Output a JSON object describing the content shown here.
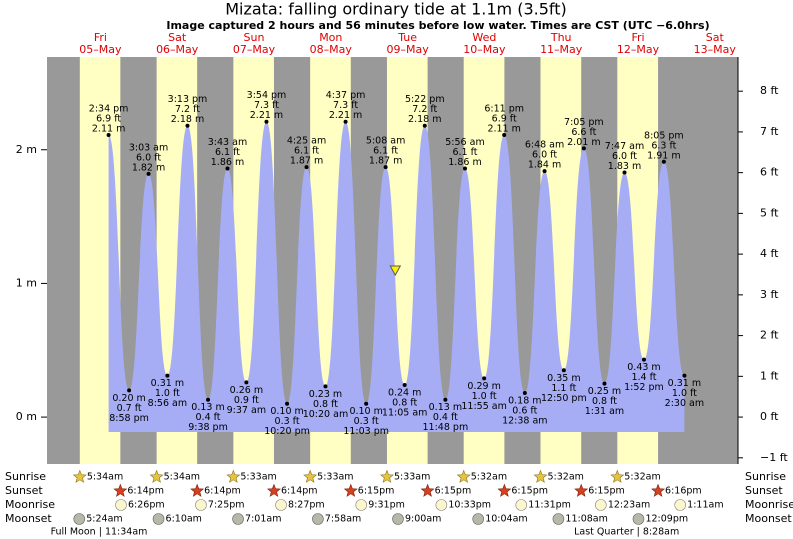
{
  "chart_data": {
    "type": "tide",
    "title": "Mizata: falling  ordinary tide at 1.1m (3.5ft)",
    "subtitle": "Image captured 2 hours and 56 minutes before low water. Times are CST (UTC −6.0hrs)",
    "current_height": 1.1,
    "ylim": [
      -0.351,
      2.694
    ],
    "yticks": [
      {
        "value": 0,
        "label": "0 m"
      },
      {
        "value": 1,
        "label": "1 m"
      },
      {
        "value": 2,
        "label": "2 m"
      }
    ],
    "y2lim": [
      -1.152,
      8.839
    ],
    "y2ticks": [
      {
        "value": -1,
        "label": "−1 ft"
      },
      {
        "value": 0,
        "label": "0 ft"
      },
      {
        "value": 1,
        "label": "1 ft"
      },
      {
        "value": 2,
        "label": "2 ft"
      },
      {
        "value": 3,
        "label": "3 ft"
      },
      {
        "value": 4,
        "label": "4 ft"
      },
      {
        "value": 5,
        "label": "5 ft"
      },
      {
        "value": 6,
        "label": "6 ft"
      },
      {
        "value": 7,
        "label": "7 ft"
      },
      {
        "value": 8,
        "label": "8 ft"
      }
    ],
    "area_color": "#a6adf4",
    "day_color": "#ffffc4",
    "night_color": "#999999",
    "extremes": {
      "times": [
        "2:34 pm",
        "8:58 pm",
        "3:03 am",
        "8:56 am",
        "3:13 pm",
        "9:38 pm",
        "3:43 am",
        "9:37 am",
        "3:54 pm",
        "10:20 pm",
        "4:25 am",
        "10:20 am",
        "4:37 pm",
        "11:03 pm",
        "5:08 am",
        "11:05 am",
        "5:22 pm",
        "11:48 pm",
        "5:56 am",
        "11:55 am",
        "6:11 pm",
        "12:38 am",
        "6:48 am",
        "12:50 pm",
        "7:05 pm",
        "1:31 am",
        "7:47 am",
        "1:52 pm",
        "8:05 pm",
        "2:30 am"
      ],
      "values": [
        2.11,
        0.2,
        1.82,
        0.31,
        2.18,
        0.13,
        1.86,
        0.26,
        2.21,
        0.1,
        1.87,
        0.23,
        2.21,
        0.1,
        1.87,
        0.24,
        2.18,
        0.13,
        1.86,
        0.29,
        2.11,
        0.18,
        1.84,
        0.35,
        2.01,
        0.25,
        1.83,
        0.43,
        1.91,
        0.31
      ],
      "value_labels": [
        "2.11 m",
        "0.20 m",
        "1.82 m",
        "0.31 m",
        "2.18 m",
        "0.13 m",
        "1.86 m",
        "0.26 m",
        "2.21 m",
        "0.10 m",
        "1.87 m",
        "0.23 m",
        "2.21 m",
        "0.10 m",
        "1.87 m",
        "0.24 m",
        "2.18 m",
        "0.13 m",
        "1.86 m",
        "0.29 m",
        "2.11 m",
        "0.18 m",
        "1.84 m",
        "0.35 m",
        "2.01 m",
        "0.25 m",
        "1.83 m",
        "0.43 m",
        "1.91 m",
        "0.31 m"
      ],
      "ft_labels": [
        "6.9 ft",
        "0.7 ft",
        "6.0 ft",
        "1.0 ft",
        "7.2 ft",
        "0.4 ft",
        "6.1 ft",
        "0.9 ft",
        "7.3 ft",
        "0.3 ft",
        "6.1 ft",
        "0.8 ft",
        "7.3 ft",
        "0.3 ft",
        "6.1 ft",
        "0.8 ft",
        "7.2 ft",
        "0.4 ft",
        "6.1 ft",
        "1.0 ft",
        "6.9 ft",
        "0.6 ft",
        "6.0 ft",
        "1.1 ft",
        "6.6 ft",
        "0.8 ft",
        "6.0 ft",
        "1.4 ft",
        "6.3 ft",
        "1.0 ft"
      ]
    },
    "row_labels": [
      "Sunrise",
      "Sunset",
      "Moonrise",
      "Moonset"
    ],
    "days": [
      {
        "weekday": "Fri",
        "date": "05–May",
        "sunrise": "5:34am",
        "sunset": "6:14pm",
        "moonrise": "6:26pm",
        "moonset": "5:24am",
        "phase": "Full Moon | 11:34am"
      },
      {
        "weekday": "Sat",
        "date": "06–May",
        "sunrise": "5:34am",
        "sunset": "6:14pm",
        "moonrise": "7:25pm",
        "moonset": "6:10am",
        "phase": null
      },
      {
        "weekday": "Sun",
        "date": "07–May",
        "sunrise": "5:33am",
        "sunset": "6:14pm",
        "moonrise": "8:27pm",
        "moonset": "7:01am",
        "phase": null
      },
      {
        "weekday": "Mon",
        "date": "08–May",
        "sunrise": "5:33am",
        "sunset": "6:15pm",
        "moonrise": "9:31pm",
        "moonset": "7:58am",
        "phase": null
      },
      {
        "weekday": "Tue",
        "date": "09–May",
        "sunrise": "5:33am",
        "sunset": "6:15pm",
        "moonrise": "10:33pm",
        "moonset": "9:00am",
        "phase": null
      },
      {
        "weekday": "Wed",
        "date": "10–May",
        "sunrise": "5:32am",
        "sunset": "6:15pm",
        "moonrise": "11:31pm",
        "moonset": "10:04am",
        "phase": null
      },
      {
        "weekday": "Thu",
        "date": "11–May",
        "sunrise": "5:32am",
        "sunset": "6:15pm",
        "moonrise": null,
        "moonset": "11:08am",
        "phase": null
      },
      {
        "weekday": "Fri",
        "date": "12–May",
        "sunrise": "5:32am",
        "sunset": "6:16pm",
        "moonrise": "12:23am",
        "moonset": "12:09pm",
        "phase": "Last Quarter | 8:28am"
      },
      {
        "weekday": "Sat",
        "date": "13–May",
        "sunrise": null,
        "sunset": null,
        "moonrise": "1:11am",
        "moonset": null,
        "phase": null
      }
    ]
  }
}
